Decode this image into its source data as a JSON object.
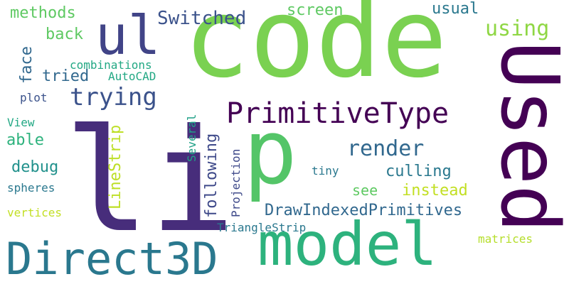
{
  "words": {
    "code": "code",
    "li": "li",
    "p": "p",
    "Used": "Used",
    "model": "model",
    "Direct3D": "Direct3D",
    "ul": "ul",
    "PrimitiveType": "PrimitiveType",
    "trying": "trying",
    "render": "render",
    "using": "using",
    "Switched": "Switched",
    "DrawIndexedPrimitives": "DrawIndexedPrimitives",
    "culling": "culling",
    "instead": "instead",
    "usual": "usual",
    "screen": "screen",
    "methods": "methods",
    "back": "back",
    "tried": "tried",
    "able": "able",
    "debug": "debug",
    "see": "see",
    "combinations": "combinations",
    "AutoCAD": "AutoCAD",
    "plot": "plot",
    "View": "View",
    "spheres": "spheres",
    "vertices": "vertices",
    "tiny": "tiny",
    "TriangleStrip": "TriangleStrip",
    "matrices": "matrices",
    "face": "face",
    "LineStrip": "LineStrip",
    "Several": "Several",
    "following": "following",
    "Projection": "Projection"
  },
  "colors": {
    "background": "#ffffff",
    "palette": [
      "#440154",
      "#472d7b",
      "#3b528b",
      "#31688e",
      "#2a788e",
      "#21918c",
      "#22a884",
      "#2db27d",
      "#54c568",
      "#7ad151",
      "#8fd744",
      "#c2df23"
    ]
  }
}
